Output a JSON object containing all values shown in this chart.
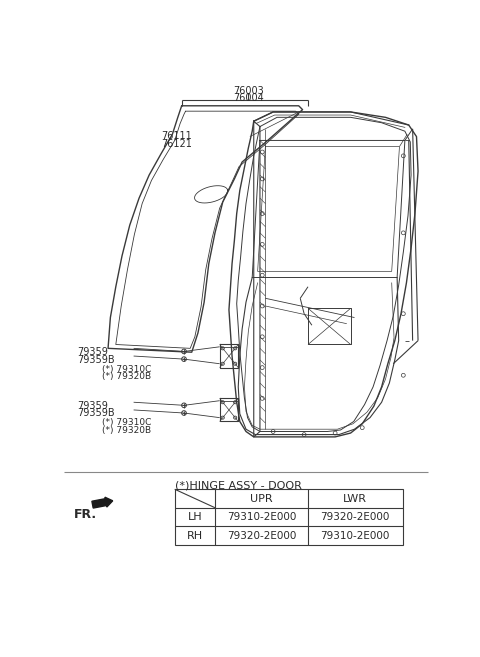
{
  "bg_color": "#ffffff",
  "line_color": "#3a3a3a",
  "fig_width": 4.8,
  "fig_height": 6.57,
  "dpi": 100,
  "hinge_label": "(*)HINGE ASSY - DOOR",
  "table_header_col1": "UPR",
  "table_header_col2": "LWR",
  "table_rows": [
    [
      "LH",
      "79310-2E000",
      "79320-2E000"
    ],
    [
      "RH",
      "79320-2E000",
      "79310-2E000"
    ]
  ],
  "fr_label": "FR.",
  "label_76003": "76003",
  "label_76004": "76004",
  "label_76111": "76111",
  "label_76121": "76121",
  "upper_labels": [
    "79359",
    "79359B",
    "(*) 79310C",
    "(*) 79320B"
  ],
  "lower_labels": [
    "79359",
    "79359B",
    "(*) 79310C",
    "(*) 79320B"
  ]
}
